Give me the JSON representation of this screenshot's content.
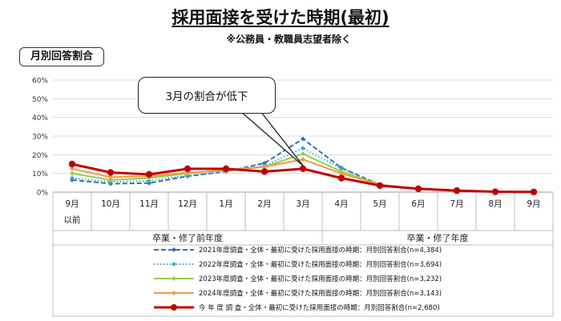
{
  "title": "採用面接を受けた時期(最初)",
  "subtitle": "※公務員・教職員志望者除く",
  "badge": "月別回答割合",
  "callout": "3月の割合が低下",
  "chart_data": {
    "type": "line",
    "categories": [
      "9月以前",
      "10月",
      "11月",
      "12月",
      "1月",
      "2月",
      "3月",
      "4月",
      "5月",
      "6月",
      "7月",
      "8月",
      "9月"
    ],
    "category_lines": [
      [
        "9月",
        "以前"
      ],
      [
        "10月"
      ],
      [
        "11月"
      ],
      [
        "12月"
      ],
      [
        "1月"
      ],
      [
        "2月"
      ],
      [
        "3月"
      ],
      [
        "4月"
      ],
      [
        "5月"
      ],
      [
        "6月"
      ],
      [
        "7月"
      ],
      [
        "8月"
      ],
      [
        "9月"
      ]
    ],
    "ylim": [
      0,
      60
    ],
    "yticks": [
      "0%",
      "10%",
      "20%",
      "30%",
      "40%",
      "50%",
      "60%"
    ],
    "grid": true,
    "groups": [
      {
        "label": "卒業・修了前年度",
        "categories": [
          "9月以前",
          "10月",
          "11月",
          "12月",
          "1月",
          "2月",
          "3月"
        ]
      },
      {
        "label": "卒業・修了年度",
        "categories": [
          "4月",
          "5月",
          "6月",
          "7月",
          "8月",
          "9月"
        ]
      }
    ],
    "series": [
      {
        "name": "2021年度調査・全体・最初に受けた採用面接の時期：月別回答割合(n=4,384)",
        "color": "#3a6fb6",
        "style": "dashed",
        "marker": "diamond",
        "values": [
          6.5,
          4.5,
          4.8,
          8.5,
          11,
          15.5,
          28.5,
          13,
          4,
          1.5,
          0.8,
          0.2,
          0.1
        ]
      },
      {
        "name": "2022年度調査・全体・最初に受けた採用面接の時期：月別回答割合(n=3,694)",
        "color": "#3fa9c8",
        "style": "dotted",
        "marker": "diamond",
        "values": [
          7.5,
          5.5,
          6,
          9,
          11,
          14,
          23.5,
          12.5,
          4,
          1.8,
          0.8,
          0.2,
          0.1
        ]
      },
      {
        "name": "2023年度調査・全体・最初に受けた採用面接の時期：月別回答割合(n=3,232)",
        "color": "#9acd4c",
        "style": "solid",
        "marker": "diamond",
        "values": [
          10,
          6.5,
          7.5,
          10,
          12,
          13.5,
          20.5,
          11,
          4,
          1.8,
          0.8,
          0.2,
          0.1
        ]
      },
      {
        "name": "2024年度調査・全体・最初に受けた採用面接の時期：月別回答割合(n=3,143)",
        "color": "#f19a46",
        "style": "solid",
        "marker": "diamond",
        "values": [
          12.5,
          8,
          8.5,
          10.5,
          11.5,
          13.5,
          17.5,
          10,
          4,
          1.8,
          0.8,
          0.2,
          0.1
        ]
      },
      {
        "name": "今 年 度 調 査・全体・最初に受けた採用面接の時期：月別回答割合(n=2,680)",
        "color": "#c00000",
        "style": "solid",
        "marker": "circle",
        "values": [
          15,
          10.5,
          9.5,
          12.5,
          12.5,
          11,
          12.5,
          7.5,
          3.5,
          1.8,
          0.8,
          0.2,
          0.1
        ]
      }
    ]
  }
}
